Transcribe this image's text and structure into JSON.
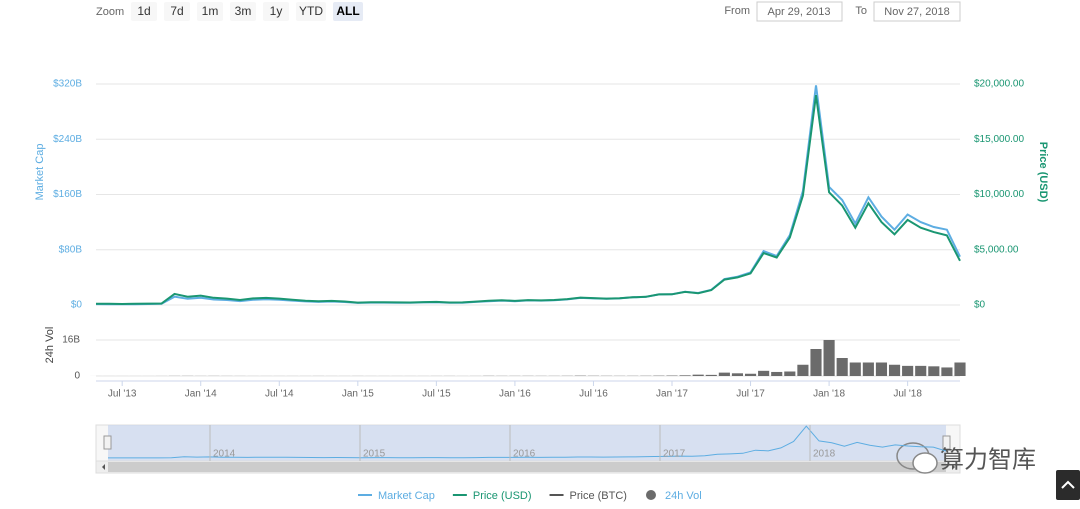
{
  "chart_data": {
    "type": "line",
    "zoom": {
      "label": "Zoom",
      "buttons": [
        "1d",
        "7d",
        "1m",
        "3m",
        "1y",
        "YTD",
        "ALL"
      ],
      "selected": 6
    },
    "range": {
      "from_label": "From",
      "from": "Apr 29, 2013",
      "to_label": "To",
      "to": "Nov 27, 2018"
    },
    "y_label": "Market Cap",
    "y2_label": "Price (USD)",
    "vol_label": "24h Vol",
    "x": [
      "2013-05",
      "2013-06",
      "2013-07",
      "2013-08",
      "2013-09",
      "2013-10",
      "2013-11",
      "2013-12",
      "2014-01",
      "2014-02",
      "2014-03",
      "2014-04",
      "2014-05",
      "2014-06",
      "2014-07",
      "2014-08",
      "2014-09",
      "2014-10",
      "2014-11",
      "2014-12",
      "2015-01",
      "2015-02",
      "2015-03",
      "2015-04",
      "2015-05",
      "2015-06",
      "2015-07",
      "2015-08",
      "2015-09",
      "2015-10",
      "2015-11",
      "2015-12",
      "2016-01",
      "2016-02",
      "2016-03",
      "2016-04",
      "2016-05",
      "2016-06",
      "2016-07",
      "2016-08",
      "2016-09",
      "2016-10",
      "2016-11",
      "2016-12",
      "2017-01",
      "2017-02",
      "2017-03",
      "2017-04",
      "2017-05",
      "2017-06",
      "2017-07",
      "2017-08",
      "2017-09",
      "2017-10",
      "2017-11",
      "2017-12",
      "2018-01",
      "2018-02",
      "2018-03",
      "2018-04",
      "2018-05",
      "2018-06",
      "2018-07",
      "2018-08",
      "2018-09",
      "2018-10",
      "2018-11"
    ],
    "xlim": [
      "2013-05",
      "2018-11"
    ],
    "xticks": [
      {
        "value": "2013-07",
        "label": "Jul '13"
      },
      {
        "value": "2014-01",
        "label": "Jan '14"
      },
      {
        "value": "2014-07",
        "label": "Jul '14"
      },
      {
        "value": "2015-01",
        "label": "Jan '15"
      },
      {
        "value": "2015-07",
        "label": "Jul '15"
      },
      {
        "value": "2016-01",
        "label": "Jan '16"
      },
      {
        "value": "2016-07",
        "label": "Jul '16"
      },
      {
        "value": "2017-01",
        "label": "Jan '17"
      },
      {
        "value": "2017-07",
        "label": "Jul '17"
      },
      {
        "value": "2018-01",
        "label": "Jan '18"
      },
      {
        "value": "2018-07",
        "label": "Jul '18"
      }
    ],
    "ylim": [
      0,
      320
    ],
    "yticks": [
      {
        "value": 0,
        "label": "$0"
      },
      {
        "value": 80,
        "label": "$80B"
      },
      {
        "value": 160,
        "label": "$160B"
      },
      {
        "value": 240,
        "label": "$240B"
      },
      {
        "value": 320,
        "label": "$320B"
      }
    ],
    "y2lim": [
      0,
      20000
    ],
    "y2ticks": [
      {
        "value": 0,
        "label": "$0"
      },
      {
        "value": 5000,
        "label": "$5,000.00"
      },
      {
        "value": 10000,
        "label": "$10,000.00"
      },
      {
        "value": 15000,
        "label": "$15,000.00"
      },
      {
        "value": 20000,
        "label": "$20,000.00"
      }
    ],
    "vol_lim": [
      0,
      24
    ],
    "vol_ticks": [
      0,
      {
        "value": 16,
        "label": "16B"
      }
    ],
    "grid": true,
    "series": [
      {
        "name": "Market Cap",
        "color": "#5dade2",
        "axis": "y",
        "values": [
          1.3,
          1.2,
          1.0,
          1.2,
          1.5,
          1.7,
          12,
          9,
          10.5,
          8,
          7.2,
          5.6,
          7.6,
          8.2,
          7.5,
          6.3,
          5.2,
          4.5,
          5,
          4.4,
          3,
          3.5,
          3.5,
          3.3,
          3.2,
          3.7,
          4.1,
          3.3,
          3.4,
          4.5,
          5.5,
          6.3,
          5.5,
          6.6,
          6.3,
          6.8,
          8.1,
          10.3,
          9.6,
          9,
          9.6,
          11.1,
          11.8,
          15.4,
          15.6,
          19.3,
          17.4,
          22,
          37.5,
          41,
          47,
          78,
          71,
          101,
          165,
          318,
          171,
          152,
          118,
          156,
          128,
          109,
          131,
          120,
          113,
          109,
          70
        ]
      },
      {
        "name": "Price (USD)",
        "color": "#1a9672",
        "axis": "y2",
        "values": [
          120,
          110,
          90,
          105,
          130,
          140,
          1000,
          750,
          850,
          650,
          580,
          450,
          600,
          640,
          580,
          480,
          390,
          340,
          370,
          320,
          220,
          250,
          250,
          235,
          230,
          260,
          285,
          230,
          235,
          310,
          380,
          430,
          370,
          440,
          415,
          450,
          530,
          670,
          620,
          575,
          610,
          700,
          740,
          960,
          970,
          1190,
          1070,
          1350,
          2300,
          2500,
          2860,
          4700,
          4300,
          6100,
          9900,
          19000,
          10200,
          9000,
          7000,
          9200,
          7500,
          6400,
          7700,
          7000,
          6600,
          6300,
          4000
        ]
      },
      {
        "name": "Price (BTC)",
        "color": "#555555",
        "hidden": true
      },
      {
        "name": "24h Vol",
        "color": "#6b6b6b",
        "axis": "vol",
        "values": [
          0.01,
          0.01,
          0.01,
          0.01,
          0.01,
          0.02,
          0.05,
          0.06,
          0.04,
          0.05,
          0.04,
          0.03,
          0.02,
          0.02,
          0.02,
          0.02,
          0.02,
          0.03,
          0.02,
          0.02,
          0.03,
          0.02,
          0.02,
          0.02,
          0.02,
          0.02,
          0.03,
          0.04,
          0.02,
          0.03,
          0.08,
          0.06,
          0.06,
          0.07,
          0.06,
          0.06,
          0.08,
          0.15,
          0.1,
          0.08,
          0.07,
          0.08,
          0.1,
          0.15,
          0.2,
          0.3,
          0.6,
          0.5,
          1.5,
          1.2,
          1.0,
          2.3,
          1.8,
          2.0,
          5,
          12,
          16,
          8,
          6,
          6,
          6,
          5,
          4.5,
          4.5,
          4.3,
          3.8,
          6
        ]
      }
    ],
    "navigator_labels": [
      "2014",
      "2015",
      "2016",
      "2017",
      "2018"
    ],
    "watermark": "算力智库"
  }
}
